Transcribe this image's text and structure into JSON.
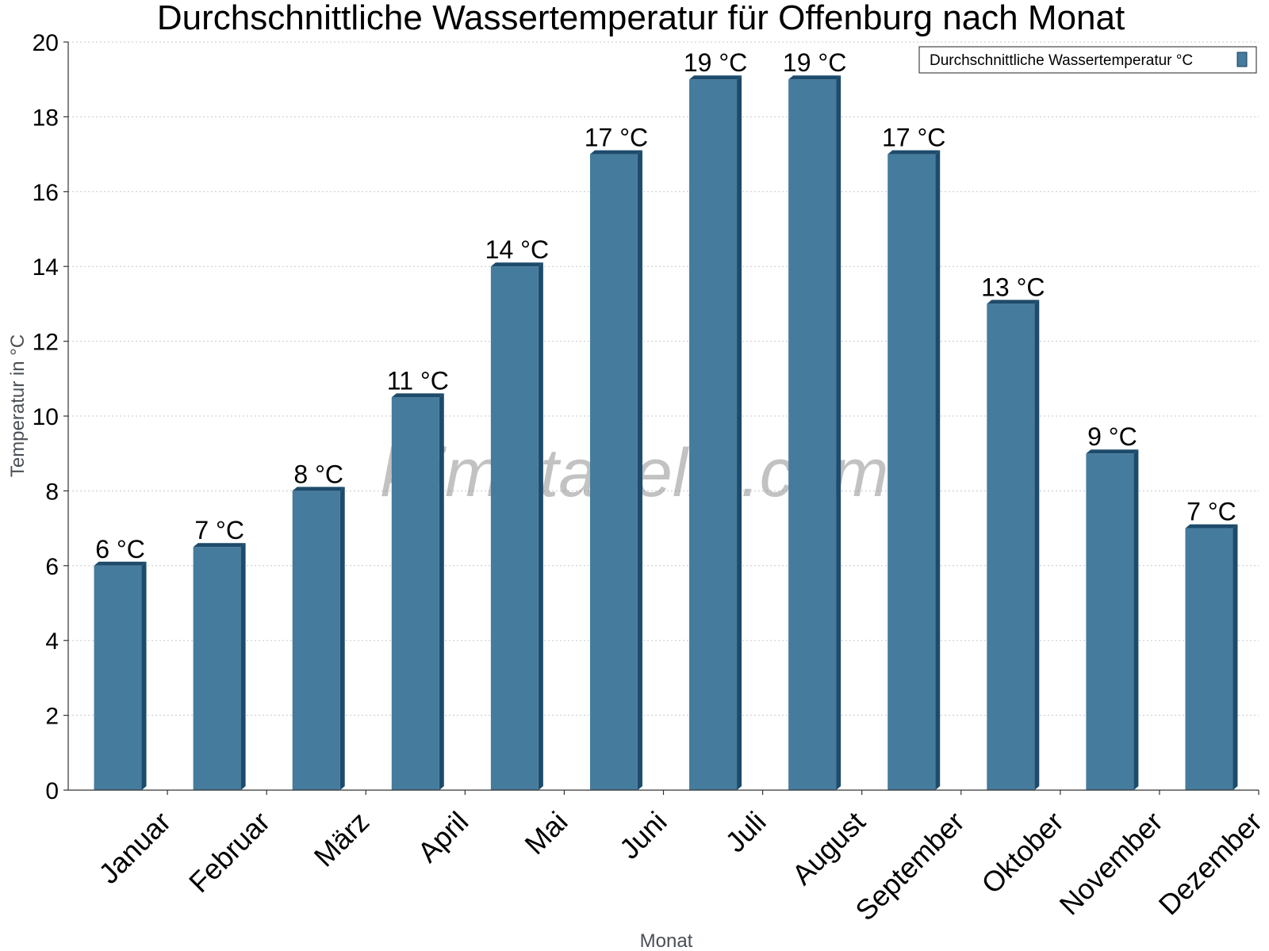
{
  "chart_data": {
    "type": "bar",
    "title": "Durchschnittliche Wassertemperatur für Offenburg nach Monat",
    "xlabel": "Monat",
    "ylabel": "Temperatur in °C",
    "ylim": [
      0,
      20
    ],
    "yticks": [
      0,
      2,
      4,
      6,
      8,
      10,
      12,
      14,
      16,
      18,
      20
    ],
    "grid": true,
    "legend_position": "top-right",
    "categories": [
      "Januar",
      "Februar",
      "März",
      "April",
      "Mai",
      "Juni",
      "Juli",
      "August",
      "September",
      "Oktober",
      "November",
      "Dezember"
    ],
    "series": [
      {
        "name": "Durchschnittliche Wassertemperatur °C",
        "color": "#457b9d",
        "values": [
          6,
          6.5,
          8,
          10.5,
          14,
          17,
          19,
          19,
          17,
          13,
          9,
          7
        ],
        "labels": [
          "6 °C",
          "7 °C",
          "8 °C",
          "11 °C",
          "14 °C",
          "17 °C",
          "19 °C",
          "19 °C",
          "17 °C",
          "13 °C",
          "9 °C",
          "7 °C"
        ]
      }
    ],
    "watermark": "klimatabelle.com"
  }
}
